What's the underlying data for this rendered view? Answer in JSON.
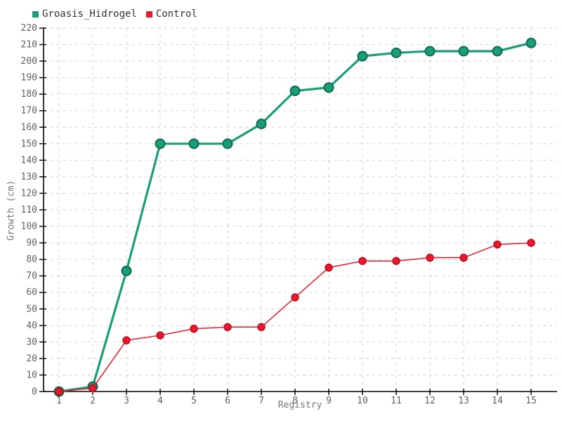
{
  "chart_data": {
    "type": "line",
    "title": "",
    "xlabel": "Registry",
    "ylabel": "Growth (cm)",
    "x": [
      1,
      2,
      3,
      4,
      5,
      6,
      7,
      8,
      9,
      10,
      11,
      12,
      13,
      14,
      15
    ],
    "series": [
      {
        "name": "Groasis_Hidrogel",
        "values": [
          0,
          3,
          73,
          150,
          150,
          150,
          162,
          182,
          184,
          203,
          205,
          206,
          206,
          206,
          211
        ],
        "color": "#1b9e77",
        "marker_stroke": "#0e6b50",
        "line_width": 3.2,
        "marker_radius": 6.5,
        "marker_stroke_width": 2
      },
      {
        "name": "Control",
        "values": [
          0,
          2,
          31,
          34,
          38,
          39,
          39,
          57,
          75,
          79,
          79,
          81,
          81,
          89,
          90
        ],
        "color": "#e8192c",
        "marker_stroke": "#b80f1f",
        "line_width": 1.5,
        "marker_radius": 5,
        "marker_stroke_width": 1.5
      }
    ],
    "ylim": [
      0,
      220
    ],
    "ytick_step": 10,
    "grid": true,
    "legend_position": "top-left",
    "axis_color": "#000000",
    "grid_color": "#d2d2d2",
    "tick_label_color": "#606060"
  }
}
